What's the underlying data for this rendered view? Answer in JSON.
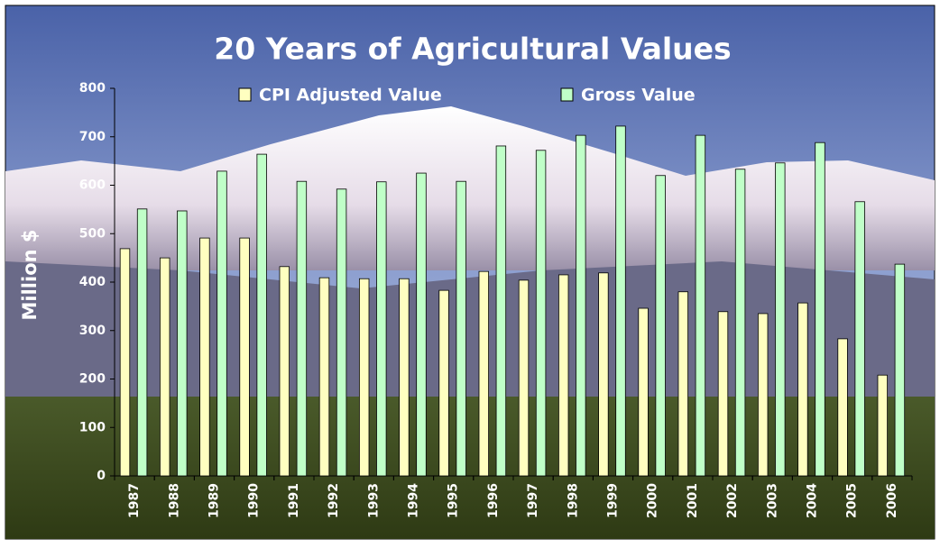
{
  "chart_data": {
    "type": "bar",
    "title": "20 Years of Agricultural Values",
    "y_label": "Million $",
    "categories": [
      "1987",
      "1988",
      "1989",
      "1990",
      "1991",
      "1992",
      "1993",
      "1994",
      "1995",
      "1996",
      "1997",
      "1998",
      "1999",
      "2000",
      "2001",
      "2002",
      "2003",
      "2004",
      "2005",
      "2006"
    ],
    "series": [
      {
        "name": "CPI Adjusted Value",
        "color": "#ffffc0",
        "values": [
          469,
          450,
          491,
          491,
          432,
          409,
          407,
          407,
          383,
          422,
          404,
          415,
          419,
          346,
          380,
          339,
          335,
          357,
          283,
          208
        ]
      },
      {
        "name": "Gross Value",
        "color": "#c0ffc8",
        "values": [
          551,
          547,
          629,
          664,
          608,
          592,
          607,
          625,
          608,
          681,
          672,
          703,
          722,
          620,
          703,
          633,
          646,
          688,
          566,
          437
        ]
      }
    ],
    "ylim": [
      0,
      800
    ],
    "yticks": [
      0,
      100,
      200,
      300,
      400,
      500,
      600,
      700,
      800
    ]
  }
}
